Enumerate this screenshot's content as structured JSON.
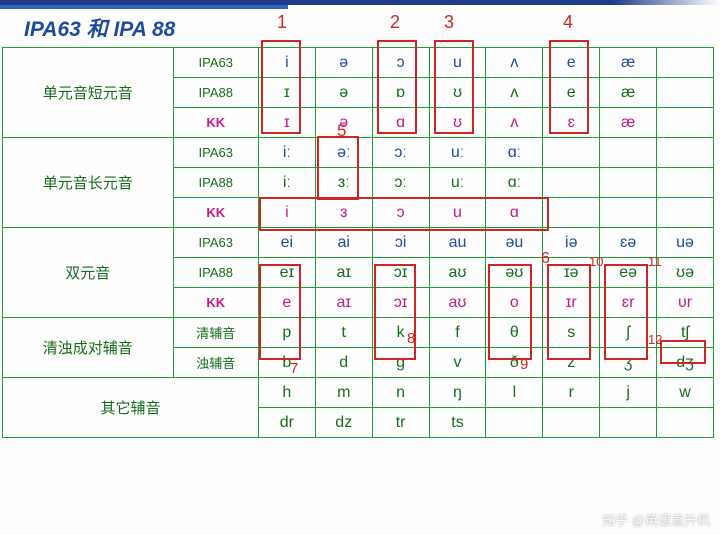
{
  "title": "IPA63 和 IPA 88",
  "watermark": "知乎 @英语直升机",
  "systems": {
    "s1": "IPA63",
    "s2": "IPA88",
    "s3": "KK"
  },
  "categories": {
    "short": "单元音短元音",
    "long": "单元音长元音",
    "diph": "双元音",
    "cons_pair": "清浊成对辅音",
    "cons_pair_a": "清辅音",
    "cons_pair_b": "浊辅音",
    "cons_other": "其它辅音"
  },
  "rows": {
    "short63": [
      "i",
      "ə",
      "ɔ",
      "u",
      "ʌ",
      "e",
      "æ",
      ""
    ],
    "short88": [
      "ɪ",
      "ə",
      "ɒ",
      "ʊ",
      "ʌ",
      "e",
      "æ",
      ""
    ],
    "shortkk": [
      "ɪ",
      "ə",
      "ɑ",
      "ʊ",
      "ʌ",
      "ɛ",
      "æ",
      ""
    ],
    "long63": [
      "iː",
      "əː",
      "ɔː",
      "uː",
      "ɑː",
      "",
      "",
      ""
    ],
    "long88": [
      "iː",
      "ɜː",
      "ɔː",
      "uː",
      "ɑː",
      "",
      "",
      ""
    ],
    "longkk": [
      "i",
      "ɜ",
      "ɔ",
      "u",
      "ɑ",
      "",
      "",
      ""
    ],
    "diph63": [
      "ei",
      "ai",
      "ɔi",
      "au",
      "əu",
      "iə",
      "ɛə",
      "uə"
    ],
    "diph88": [
      "eɪ",
      "aɪ",
      "ɔɪ",
      "aʊ",
      "əʊ",
      "ɪə",
      "eə",
      "ʊə"
    ],
    "diphkk": [
      "e",
      "aɪ",
      "ɔɪ",
      "aʊ",
      "o",
      "ɪr",
      "ɛr",
      "ᴜr"
    ],
    "voiceless": [
      "p",
      "t",
      "k",
      "f",
      "θ",
      "s",
      "ʃ",
      "tʃ"
    ],
    "voiced": [
      "b",
      "d",
      "g",
      "v",
      "ð",
      "z",
      "ʒ",
      "dʒ"
    ],
    "other1": [
      "h",
      "m",
      "n",
      "ŋ",
      "l",
      "r",
      "j",
      "w"
    ],
    "other2": [
      "dr",
      "dz",
      "tr",
      "ts",
      "",
      "",
      "",
      ""
    ]
  },
  "annotations": {
    "n1": "1",
    "n2": "2",
    "n3": "3",
    "n4": "4",
    "n5": "5",
    "n6": "6",
    "n7": "7",
    "n8": "8",
    "n9": "9",
    "n10": "10",
    "n11": "11",
    "n12": "12"
  }
}
